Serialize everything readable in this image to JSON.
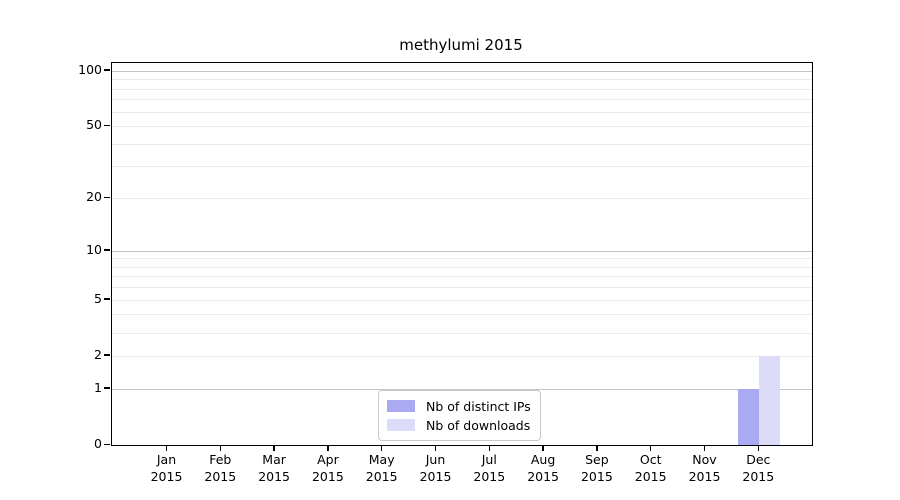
{
  "chart_data": {
    "type": "bar",
    "title": "methylumi 2015",
    "categories": [
      "Jan",
      "Feb",
      "Mar",
      "Apr",
      "May",
      "Jun",
      "Jul",
      "Aug",
      "Sep",
      "Oct",
      "Nov",
      "Dec"
    ],
    "year_label": "2015",
    "series": [
      {
        "name": "Nb of distinct IPs",
        "color": "#aaaaf2",
        "values": [
          0,
          0,
          0,
          0,
          0,
          0,
          0,
          0,
          0,
          0,
          0,
          1
        ]
      },
      {
        "name": "Nb of downloads",
        "color": "#dcdcf8",
        "values": [
          0,
          0,
          0,
          0,
          0,
          0,
          0,
          0,
          0,
          0,
          0,
          2
        ]
      }
    ],
    "yscale": "log1p",
    "ylabel": "",
    "xlabel": "",
    "y_ticks": [
      0,
      1,
      2,
      5,
      10,
      20,
      50,
      100
    ],
    "y_gridlines_major": [
      1,
      10,
      100
    ],
    "y_gridlines_minor": [
      2,
      3,
      4,
      5,
      6,
      7,
      8,
      9,
      20,
      30,
      40,
      50,
      60,
      70,
      80,
      90
    ],
    "ylim": [
      0,
      110
    ],
    "grid": true,
    "legend_position": "inside-bottom-center",
    "colors": {
      "grid_major": "#c4c4c4",
      "grid_minor": "#ebebeb",
      "axis": "#000000",
      "background": "#ffffff"
    }
  }
}
